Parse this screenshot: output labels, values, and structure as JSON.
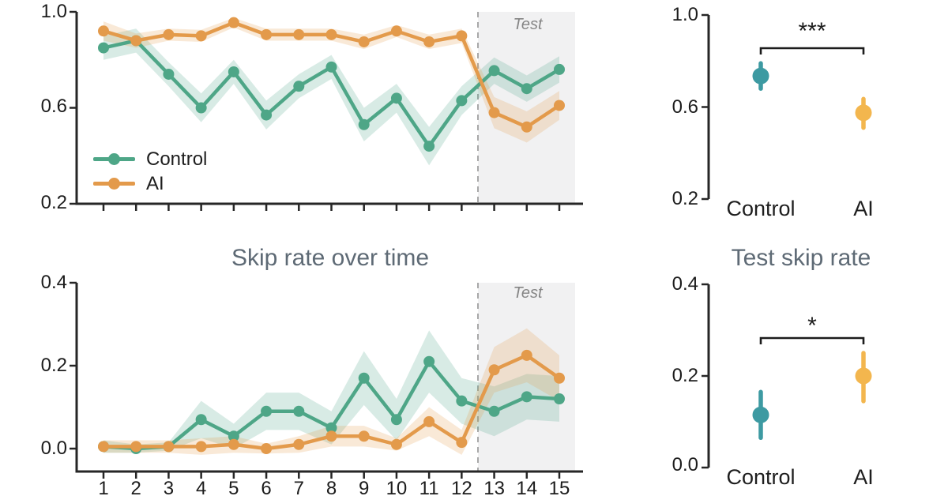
{
  "colors": {
    "control_line": "#4ea687",
    "ai_line": "#e39a4b",
    "control_point": "#3d9aa2",
    "ai_point": "#f3b64e",
    "title": "#5e6a75",
    "tick_label": "#1c1c1c",
    "axis": "#262626",
    "test_region": "#f1f1f2",
    "test_label": "#858585",
    "dashed_line": "#a8a8a8"
  },
  "legend": {
    "items": [
      {
        "label": "Control"
      },
      {
        "label": "AI"
      }
    ]
  },
  "chart_data": [
    {
      "id": "top-left-timeseries",
      "type": "line",
      "x": [
        1,
        2,
        3,
        4,
        5,
        6,
        7,
        8,
        9,
        10,
        11,
        12,
        13,
        14,
        15
      ],
      "ylim": [
        0.2,
        1.0
      ],
      "yticks": [
        1.0,
        0.6,
        0.2
      ],
      "ytick_labels": [
        "1.0",
        "0.6",
        "0.2"
      ],
      "xtick_labels_visible": false,
      "test_region": {
        "start_x": 12.5,
        "label": "Test"
      },
      "legend_entries": [
        "Control",
        "AI"
      ],
      "series": [
        {
          "name": "Control",
          "values": [
            0.85,
            0.88,
            0.74,
            0.6,
            0.75,
            0.57,
            0.69,
            0.77,
            0.53,
            0.64,
            0.44,
            0.63,
            0.755,
            0.68,
            0.76
          ],
          "ci": [
            0.05,
            0.05,
            0.05,
            0.06,
            0.05,
            0.06,
            0.05,
            0.05,
            0.07,
            0.06,
            0.08,
            0.06,
            0.055,
            0.055,
            0.055
          ]
        },
        {
          "name": "AI",
          "values": [
            0.92,
            0.88,
            0.905,
            0.9,
            0.955,
            0.905,
            0.905,
            0.905,
            0.875,
            0.92,
            0.875,
            0.9,
            0.58,
            0.52,
            0.61
          ],
          "ci": [
            0.04,
            0.03,
            0.025,
            0.025,
            0.02,
            0.025,
            0.025,
            0.025,
            0.03,
            0.025,
            0.03,
            0.03,
            0.065,
            0.065,
            0.06
          ]
        }
      ]
    },
    {
      "id": "top-right-summary",
      "type": "point",
      "categories": [
        "Control",
        "AI"
      ],
      "ylim": [
        0.2,
        1.0
      ],
      "yticks": [
        1.0,
        0.6,
        0.2
      ],
      "ytick_labels": [
        "1.0",
        "0.6",
        "0.2"
      ],
      "significance": "***",
      "points": [
        {
          "name": "Control",
          "value": 0.735,
          "ci_low": 0.68,
          "ci_high": 0.79
        },
        {
          "name": "AI",
          "value": 0.575,
          "ci_low": 0.51,
          "ci_high": 0.635
        }
      ]
    },
    {
      "id": "skip-rate-over-time",
      "type": "line",
      "title": "Skip rate over time",
      "x": [
        1,
        2,
        3,
        4,
        5,
        6,
        7,
        8,
        9,
        10,
        11,
        12,
        13,
        14,
        15
      ],
      "ylim": [
        0.0,
        0.4
      ],
      "yticks": [
        0.4,
        0.2,
        0.0
      ],
      "ytick_labels": [
        "0.4",
        "0.2",
        "0.0"
      ],
      "xtick_labels_visible": true,
      "test_region": {
        "start_x": 12.5,
        "label": "Test"
      },
      "series": [
        {
          "name": "Control",
          "values": [
            0.005,
            0.0,
            0.005,
            0.07,
            0.03,
            0.09,
            0.09,
            0.05,
            0.17,
            0.07,
            0.21,
            0.115,
            0.09,
            0.125,
            0.12
          ],
          "ci": [
            0.015,
            0.01,
            0.01,
            0.045,
            0.03,
            0.045,
            0.045,
            0.04,
            0.065,
            0.05,
            0.075,
            0.055,
            0.06,
            0.055,
            0.055
          ]
        },
        {
          "name": "AI",
          "values": [
            0.005,
            0.005,
            0.005,
            0.005,
            0.01,
            0.0,
            0.01,
            0.03,
            0.03,
            0.01,
            0.065,
            0.015,
            0.19,
            0.225,
            0.17
          ],
          "ci": [
            0.015,
            0.015,
            0.015,
            0.02,
            0.02,
            0.012,
            0.02,
            0.025,
            0.025,
            0.015,
            0.035,
            0.03,
            0.055,
            0.065,
            0.055
          ]
        }
      ]
    },
    {
      "id": "test-skip-rate",
      "type": "point",
      "title": "Test skip rate",
      "categories": [
        "Control",
        "AI"
      ],
      "ylim": [
        0.0,
        0.4
      ],
      "yticks": [
        0.4,
        0.2,
        0.0
      ],
      "ytick_labels": [
        "0.4",
        "0.2",
        "0.0"
      ],
      "significance": "*",
      "points": [
        {
          "name": "Control",
          "value": 0.115,
          "ci_low": 0.065,
          "ci_high": 0.165
        },
        {
          "name": "AI",
          "value": 0.2,
          "ci_low": 0.145,
          "ci_high": 0.25
        }
      ]
    }
  ]
}
